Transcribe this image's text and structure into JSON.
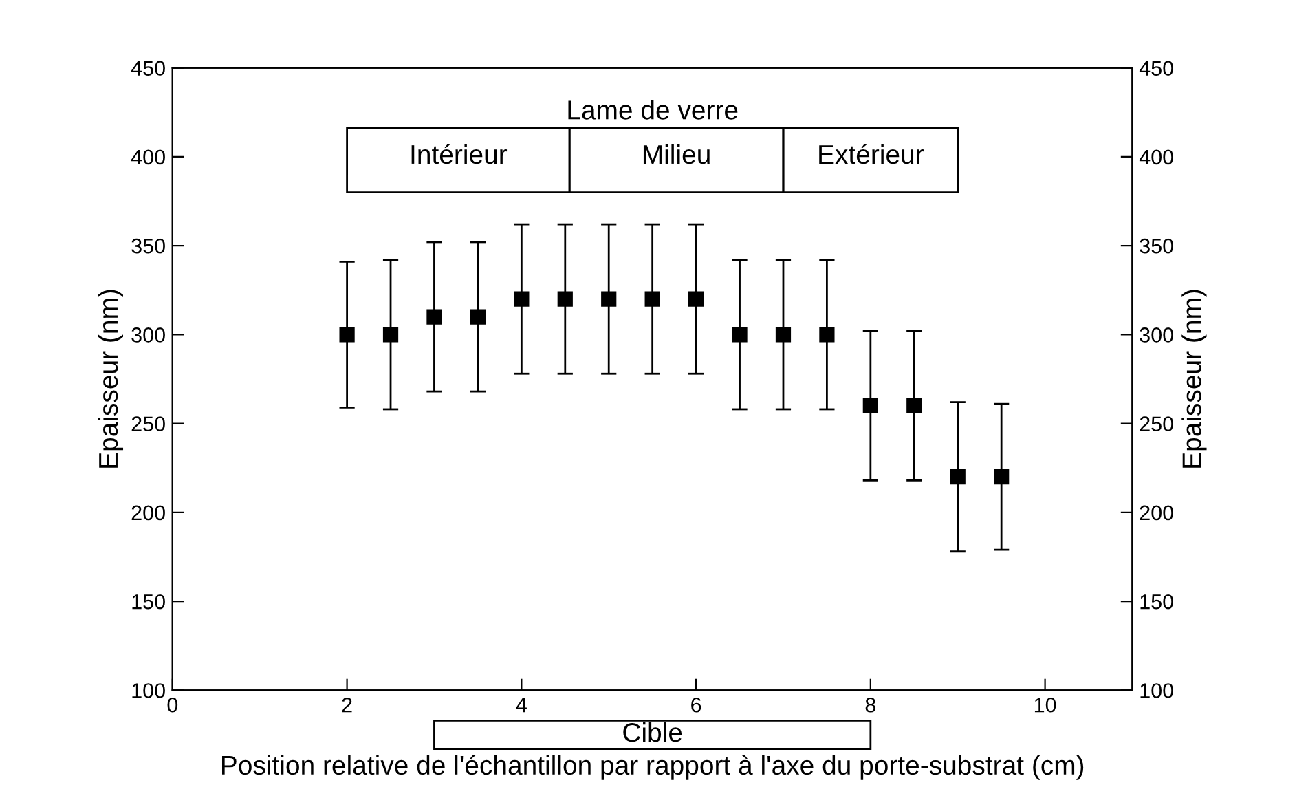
{
  "chart_data": {
    "type": "scatter",
    "xlabel": "Position relative de l'échantillon par rapport à l'axe du porte-substrat (cm)",
    "ylabel": "Epaisseur (nm)",
    "y2label": "Epaisseur (nm)",
    "x": [
      2,
      2.5,
      3,
      3.5,
      4,
      4.5,
      5,
      5.5,
      6,
      6.5,
      7,
      7.5,
      8,
      8.5,
      9,
      9.5
    ],
    "series": [
      {
        "color": "#000000",
        "values": [
          300,
          300,
          310,
          310,
          320,
          320,
          320,
          320,
          320,
          300,
          300,
          300,
          260,
          260,
          220,
          220
        ],
        "errors": [
          41,
          42,
          42,
          42,
          42,
          42,
          42,
          42,
          42,
          42,
          42,
          42,
          42,
          42,
          42,
          41
        ]
      }
    ],
    "marker": "square",
    "xlim": [
      0,
      11
    ],
    "xticks": [
      0,
      2,
      4,
      6,
      8,
      10
    ],
    "ylim": [
      100,
      450
    ],
    "yticks": [
      100,
      150,
      200,
      250,
      300,
      350,
      400,
      450
    ],
    "y2lim": [
      100,
      450
    ],
    "y2ticks": [
      100,
      150,
      200,
      250,
      300,
      350,
      400,
      450
    ],
    "grid": false,
    "legend": false,
    "annotations": [
      "Lame de verre",
      "Intérieur",
      "Milieu",
      "Extérieur",
      "Cible"
    ]
  }
}
